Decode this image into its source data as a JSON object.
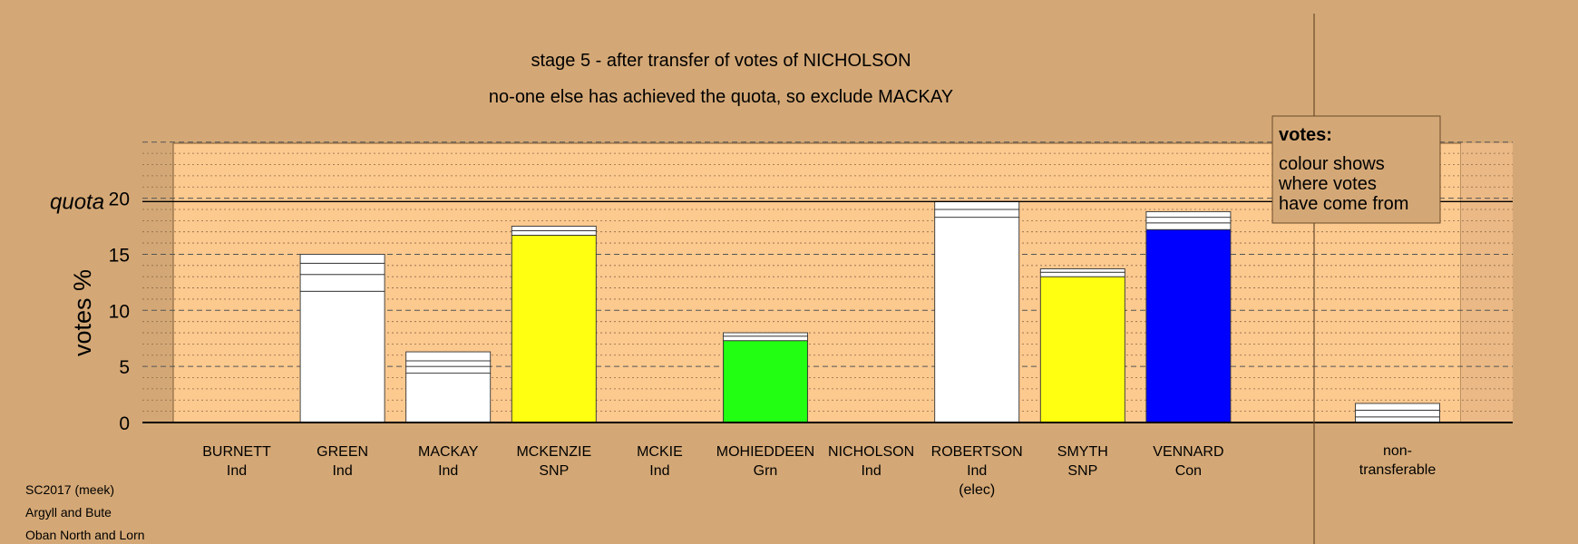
{
  "chart_data": {
    "type": "bar",
    "title": "stage 5 - after transfer of votes of NICHOLSON",
    "subtitle": "no-one else has achieved the quota, so exclude MACKAY",
    "ylabel": "votes %",
    "quota_label": "quota",
    "quota": 19.7,
    "ylim": [
      0,
      25
    ],
    "yticks": [
      0,
      5,
      10,
      15,
      20
    ],
    "candidates": [
      {
        "name": "BURNETT",
        "party": "Ind",
        "status": "",
        "segments": []
      },
      {
        "name": "GREEN",
        "party": "Ind",
        "status": "",
        "segments": [
          {
            "value": 11.7,
            "color": "#ffffff"
          },
          {
            "value": 1.5,
            "color": "#ffffff"
          },
          {
            "value": 1.0,
            "color": "#ffffff"
          },
          {
            "value": 0.8,
            "color": "#ffffff"
          }
        ]
      },
      {
        "name": "MACKAY",
        "party": "Ind",
        "status": "",
        "segments": [
          {
            "value": 4.4,
            "color": "#ffffff"
          },
          {
            "value": 0.6,
            "color": "#ffffff"
          },
          {
            "value": 0.5,
            "color": "#ffffff"
          },
          {
            "value": 0.8,
            "color": "#ffffff"
          }
        ]
      },
      {
        "name": "MCKENZIE",
        "party": "SNP",
        "status": "",
        "segments": [
          {
            "value": 16.7,
            "color": "#ffff12"
          },
          {
            "value": 0.4,
            "color": "#ffffff"
          },
          {
            "value": 0.4,
            "color": "#ffffff"
          }
        ]
      },
      {
        "name": "MCKIE",
        "party": "Ind",
        "status": "",
        "segments": []
      },
      {
        "name": "MOHIEDDEEN",
        "party": "Grn",
        "status": "",
        "segments": [
          {
            "value": 7.3,
            "color": "#22ff12"
          },
          {
            "value": 0.4,
            "color": "#ffffff"
          },
          {
            "value": 0.3,
            "color": "#ffffff"
          }
        ]
      },
      {
        "name": "NICHOLSON",
        "party": "Ind",
        "status": "",
        "segments": []
      },
      {
        "name": "ROBERTSON",
        "party": "Ind",
        "status": "(elec)",
        "segments": [
          {
            "value": 18.3,
            "color": "#ffffff"
          },
          {
            "value": 0.7,
            "color": "#ffffff"
          },
          {
            "value": 0.7,
            "color": "#ffffff"
          }
        ]
      },
      {
        "name": "SMYTH",
        "party": "SNP",
        "status": "",
        "segments": [
          {
            "value": 13.0,
            "color": "#ffff12"
          },
          {
            "value": 0.4,
            "color": "#ffffff"
          },
          {
            "value": 0.3,
            "color": "#ffffff"
          }
        ]
      },
      {
        "name": "VENNARD",
        "party": "Con",
        "status": "",
        "segments": [
          {
            "value": 17.2,
            "color": "#0000ff"
          },
          {
            "value": 0.6,
            "color": "#ffffff"
          },
          {
            "value": 0.5,
            "color": "#ffffff"
          },
          {
            "value": 0.5,
            "color": "#ffffff"
          }
        ]
      }
    ],
    "nontransferable": {
      "label_line1": "non-",
      "label_line2": "transferable",
      "segments": [
        {
          "value": 0.5,
          "color": "#ffffff"
        },
        {
          "value": 0.6,
          "color": "#ffffff"
        },
        {
          "value": 0.6,
          "color": "#ffffff"
        }
      ]
    },
    "legend": {
      "title": "votes:",
      "lines": [
        "colour shows",
        "where votes",
        "have come from"
      ]
    },
    "footer": [
      "SC2017 (meek)",
      "Argyll and Bute",
      "Oban North and Lorn"
    ]
  }
}
